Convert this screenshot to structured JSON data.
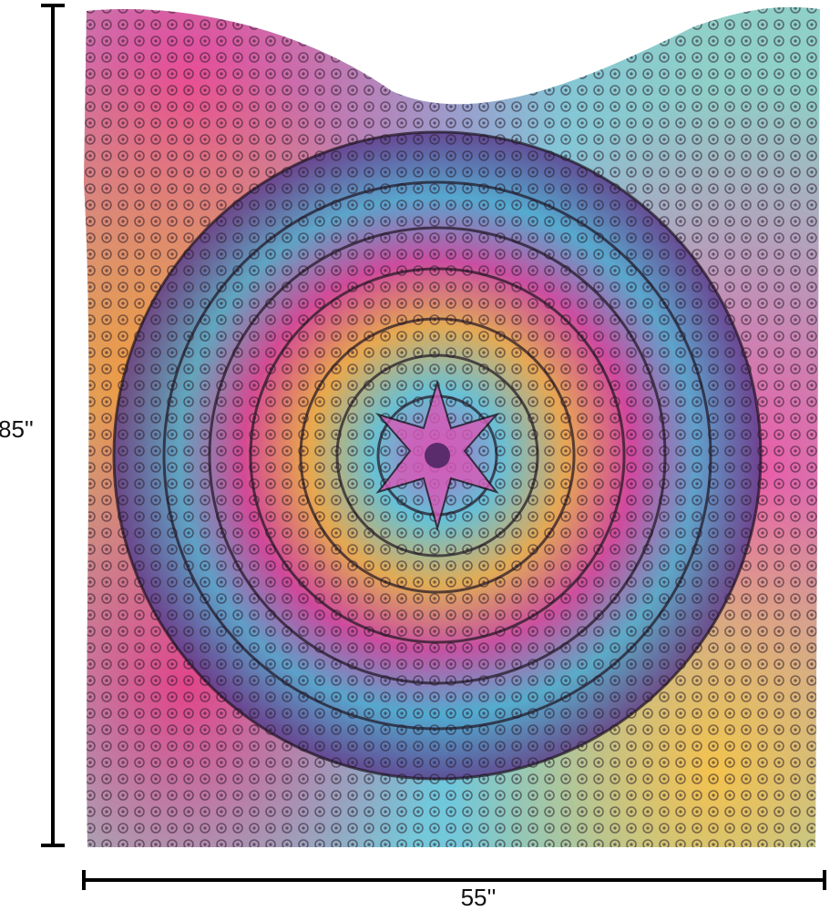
{
  "dimensions": {
    "height": "85''",
    "width": "55''"
  }
}
